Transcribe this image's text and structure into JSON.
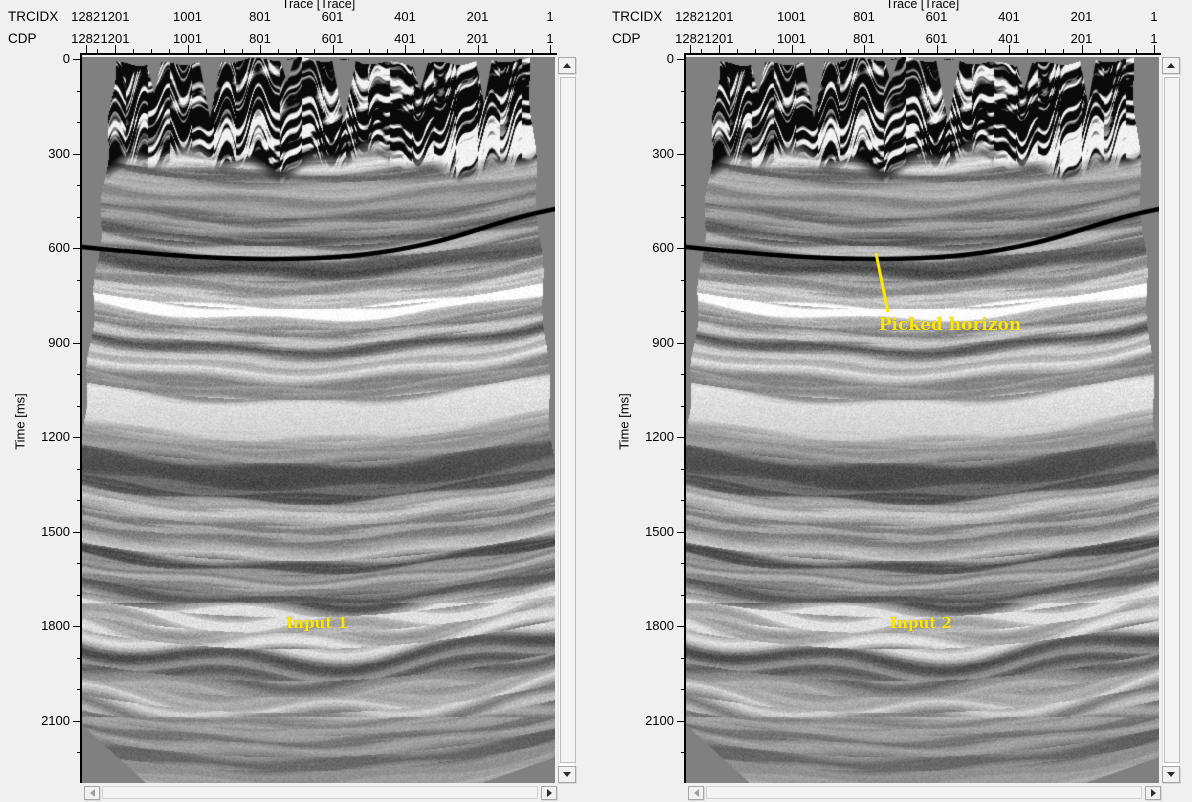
{
  "window": {
    "background": "#f0f0f0"
  },
  "colors": {
    "plot_background": "#808080",
    "axis": "#000000",
    "horizon": "#000000",
    "annotation_text": "#ffe800",
    "scrollbar_track": "#ffffff",
    "scrollbar_face": "#f1f1f1"
  },
  "panels": [
    {
      "trace_axis": {
        "title": "Trace [Trace]",
        "row_labels": [
          "TRCIDX",
          "CDP"
        ],
        "tick_values": [
          1282,
          1201,
          1001,
          801,
          601,
          401,
          201,
          1
        ],
        "minor_step": 50
      },
      "time_axis": {
        "title": "Time [ms]",
        "tick_values": [
          0,
          300,
          600,
          900,
          1200,
          1500,
          1800,
          2100
        ],
        "minor_step": 100
      },
      "annotation": "Input 1"
    },
    {
      "trace_axis": {
        "title": "Trace [Trace]",
        "row_labels": [
          "TRCIDX",
          "CDP"
        ],
        "tick_values": [
          1282,
          1201,
          1001,
          801,
          601,
          401,
          201,
          1
        ],
        "minor_step": 50
      },
      "time_axis": {
        "title": "Time [ms]",
        "tick_values": [
          0,
          300,
          600,
          900,
          1200,
          1500,
          1800,
          2100
        ],
        "minor_step": 100
      },
      "annotation": "Input 2",
      "horizon_label": "Picked horizon"
    }
  ]
}
